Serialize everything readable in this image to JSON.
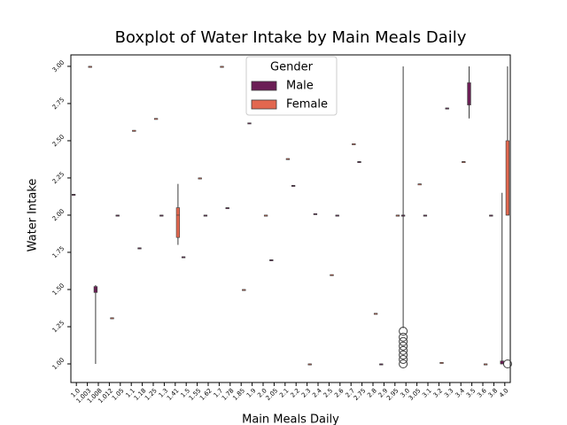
{
  "chart_data": {
    "type": "box",
    "title": "Boxplot of Water Intake by Main Meals Daily",
    "x_label": "Main Meals Daily",
    "y_label": "Water Intake",
    "legend_title": "Gender",
    "legend_position": "upper center",
    "ylim": [
      0.875,
      3.077
    ],
    "yticks": [
      {
        "value": 1,
        "label": "1.00"
      },
      {
        "value": 1.25,
        "label": "1.25"
      },
      {
        "value": 1.5,
        "label": "1.50"
      },
      {
        "value": 1.75,
        "label": "1.75"
      },
      {
        "value": 2,
        "label": "2.00"
      },
      {
        "value": 2.25,
        "label": "2.25"
      },
      {
        "value": 2.5,
        "label": "2.50"
      },
      {
        "value": 2.75,
        "label": "2.75"
      },
      {
        "value": 3,
        "label": "3.00"
      }
    ],
    "categories": [
      "1.0",
      "1.003",
      "1.008",
      "1.012",
      "1.05",
      "1.1",
      "1.18",
      "1.25",
      "1.3",
      "1.41",
      "1.5",
      "1.55",
      "1.62",
      "1.7",
      "1.78",
      "1.85",
      "1.9",
      "2.0",
      "2.05",
      "2.1",
      "2.2",
      "2.3",
      "2.4",
      "2.5",
      "2.6",
      "2.7",
      "2.75",
      "2.8",
      "2.9",
      "2.95",
      "3.0",
      "3.05",
      "3.1",
      "3.2",
      "3.3",
      "3.4",
      "3.5",
      "3.6",
      "3.8",
      "4.0"
    ],
    "series": [
      {
        "name": "Male",
        "color": "#6b1e55",
        "values": [
          [
            2.14,
            2.14,
            2.14,
            2.14,
            2.14
          ],
          null,
          [
            1.0,
            1.48,
            1.5,
            1.52,
            1.53
          ],
          null,
          [
            2.0,
            2.0,
            2.0,
            2.0,
            2.0
          ],
          null,
          [
            1.78,
            1.78,
            1.78,
            1.78,
            1.78
          ],
          null,
          [
            2.0,
            2.0,
            2.0,
            2.0,
            2.0
          ],
          null,
          [
            1.72,
            1.72,
            1.72,
            1.72,
            1.72
          ],
          null,
          [
            2.0,
            2.0,
            2.0,
            2.0,
            2.0
          ],
          null,
          [
            2.05,
            2.05,
            2.05,
            2.05,
            2.05
          ],
          null,
          [
            2.62,
            2.62,
            2.62,
            2.62,
            2.62
          ],
          null,
          [
            1.7,
            1.7,
            1.7,
            1.7,
            1.7
          ],
          null,
          [
            2.2,
            2.2,
            2.2,
            2.2,
            2.2
          ],
          null,
          [
            2.01,
            2.01,
            2.01,
            2.01,
            2.01
          ],
          null,
          [
            2.0,
            2.0,
            2.0,
            2.0,
            2.0
          ],
          null,
          [
            2.36,
            2.36,
            2.36,
            2.36,
            2.36
          ],
          null,
          [
            1.0,
            1.0,
            1.0,
            1.0,
            1.0
          ],
          null,
          [
            1.24,
            2.0,
            2.0,
            2.0,
            3.0
          ],
          null,
          [
            2.0,
            2.0,
            2.0,
            2.0,
            2.0
          ],
          null,
          [
            2.72,
            2.72,
            2.72,
            2.72,
            2.72
          ],
          null,
          [
            2.65,
            2.74,
            2.75,
            2.89,
            3.0
          ],
          null,
          [
            2.0,
            2.0,
            2.0,
            2.0,
            2.0
          ],
          [
            1.0,
            1.0,
            1.0,
            1.02,
            2.15
          ]
        ],
        "outliers": [
          null,
          null,
          null,
          null,
          null,
          null,
          null,
          null,
          null,
          null,
          null,
          null,
          null,
          null,
          null,
          null,
          null,
          null,
          null,
          null,
          null,
          null,
          null,
          null,
          null,
          null,
          null,
          null,
          null,
          null,
          [
            1.0,
            1.03,
            1.06,
            1.09,
            1.12,
            1.15,
            1.18,
            1.22
          ],
          null,
          null,
          null,
          null,
          null,
          null,
          null,
          null,
          null
        ]
      },
      {
        "name": "Female",
        "color": "#e2674f",
        "values": [
          null,
          [
            3.0,
            3.0,
            3.0,
            3.0,
            3.0
          ],
          null,
          [
            1.31,
            1.31,
            1.31,
            1.31,
            1.31
          ],
          null,
          [
            2.57,
            2.57,
            2.57,
            2.57,
            2.57
          ],
          null,
          [
            2.65,
            2.65,
            2.65,
            2.65,
            2.65
          ],
          null,
          [
            1.8,
            1.85,
            2.0,
            2.05,
            2.21
          ],
          null,
          [
            2.25,
            2.25,
            2.25,
            2.25,
            2.25
          ],
          null,
          [
            3.0,
            3.0,
            3.0,
            3.0,
            3.0
          ],
          null,
          [
            1.5,
            1.5,
            1.5,
            1.5,
            1.5
          ],
          null,
          [
            2.0,
            2.0,
            2.0,
            2.0,
            2.0
          ],
          null,
          [
            2.38,
            2.38,
            2.38,
            2.38,
            2.38
          ],
          null,
          [
            1.0,
            1.0,
            1.0,
            1.0,
            1.0
          ],
          null,
          [
            1.6,
            1.6,
            1.6,
            1.6,
            1.6
          ],
          null,
          [
            2.48,
            2.48,
            2.48,
            2.48,
            2.48
          ],
          null,
          [
            1.34,
            1.34,
            1.34,
            1.34,
            1.34
          ],
          null,
          [
            2.0,
            2.0,
            2.0,
            2.0,
            2.0
          ],
          null,
          [
            2.21,
            2.21,
            2.21,
            2.21,
            2.21
          ],
          null,
          [
            1.01,
            1.01,
            1.01,
            1.01,
            1.01
          ],
          null,
          [
            2.36,
            2.36,
            2.36,
            2.36,
            2.36
          ],
          null,
          [
            1.0,
            1.0,
            1.0,
            1.0,
            1.0
          ],
          null,
          [
            2.0,
            2.0,
            2.0,
            2.5,
            3.0
          ]
        ],
        "outliers": [
          null,
          null,
          null,
          null,
          null,
          null,
          null,
          null,
          null,
          null,
          null,
          null,
          null,
          null,
          null,
          null,
          null,
          null,
          null,
          null,
          null,
          null,
          null,
          null,
          null,
          null,
          null,
          null,
          null,
          null,
          null,
          null,
          null,
          null,
          null,
          null,
          null,
          null,
          null,
          [
            1.0
          ]
        ]
      }
    ]
  }
}
